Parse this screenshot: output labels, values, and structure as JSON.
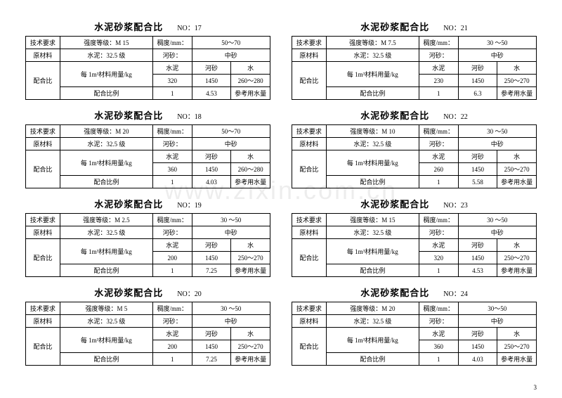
{
  "watermark": "www.zixin.com.cn",
  "page_number": "3",
  "common": {
    "title_main": "水泥砂浆配合比",
    "no_prefix": "NO：",
    "row1_lbl": "技术要求",
    "row1_grade_lbl": "强度等级：",
    "row1_consist_lbl": "稠度/mm：",
    "row2_lbl": "原材料",
    "row2_cement_lbl": "水泥：",
    "row2_cement_grade": "32.5  级",
    "row2_sand_lbl": "河砂：",
    "row2_sand_type": "中砂",
    "ratio_lbl": "配合比",
    "per_m3_lbl": "每 1m³材料用量/kg",
    "col_cement": "水泥",
    "col_sand": "河砂",
    "col_water": "水",
    "mix_ratio_lbl": "配合比例",
    "ref_water": "参考用水量",
    "ratio_one": "1"
  },
  "blocks": [
    {
      "no": "17",
      "grade": "M 15",
      "consist": "50～70",
      "cement": "320",
      "sand": "1450",
      "water": "260～280",
      "sand_ratio": "4.53"
    },
    {
      "no": "21",
      "grade": "M 7.5",
      "consist": "30 ～50",
      "cement": "230",
      "sand": "1450",
      "water": "250～270",
      "sand_ratio": "6.3"
    },
    {
      "no": "18",
      "grade": "M 20",
      "consist": "50～70",
      "cement": "360",
      "sand": "1450",
      "water": "260～280",
      "sand_ratio": "4.03"
    },
    {
      "no": "22",
      "grade": "M 10",
      "consist": "30 ～50",
      "cement": "260",
      "sand": "1450",
      "water": "250～270",
      "sand_ratio": "5.58"
    },
    {
      "no": "19",
      "grade": "M 2.5",
      "consist": "30 ～50",
      "cement": "200",
      "sand": "1450",
      "water": "250～270",
      "sand_ratio": "7.25"
    },
    {
      "no": "23",
      "grade": "M 15",
      "consist": "30 ～50",
      "cement": "320",
      "sand": "1450",
      "water": "250～270",
      "sand_ratio": "4.53"
    },
    {
      "no": "20",
      "grade": "M 5",
      "consist": "30 ～50",
      "cement": "200",
      "sand": "1450",
      "water": "250～270",
      "sand_ratio": "7.25"
    },
    {
      "no": "24",
      "grade": "M 20",
      "consist": "30～50",
      "cement": "360",
      "sand": "1450",
      "water": "250～270",
      "sand_ratio": "4.03"
    }
  ]
}
